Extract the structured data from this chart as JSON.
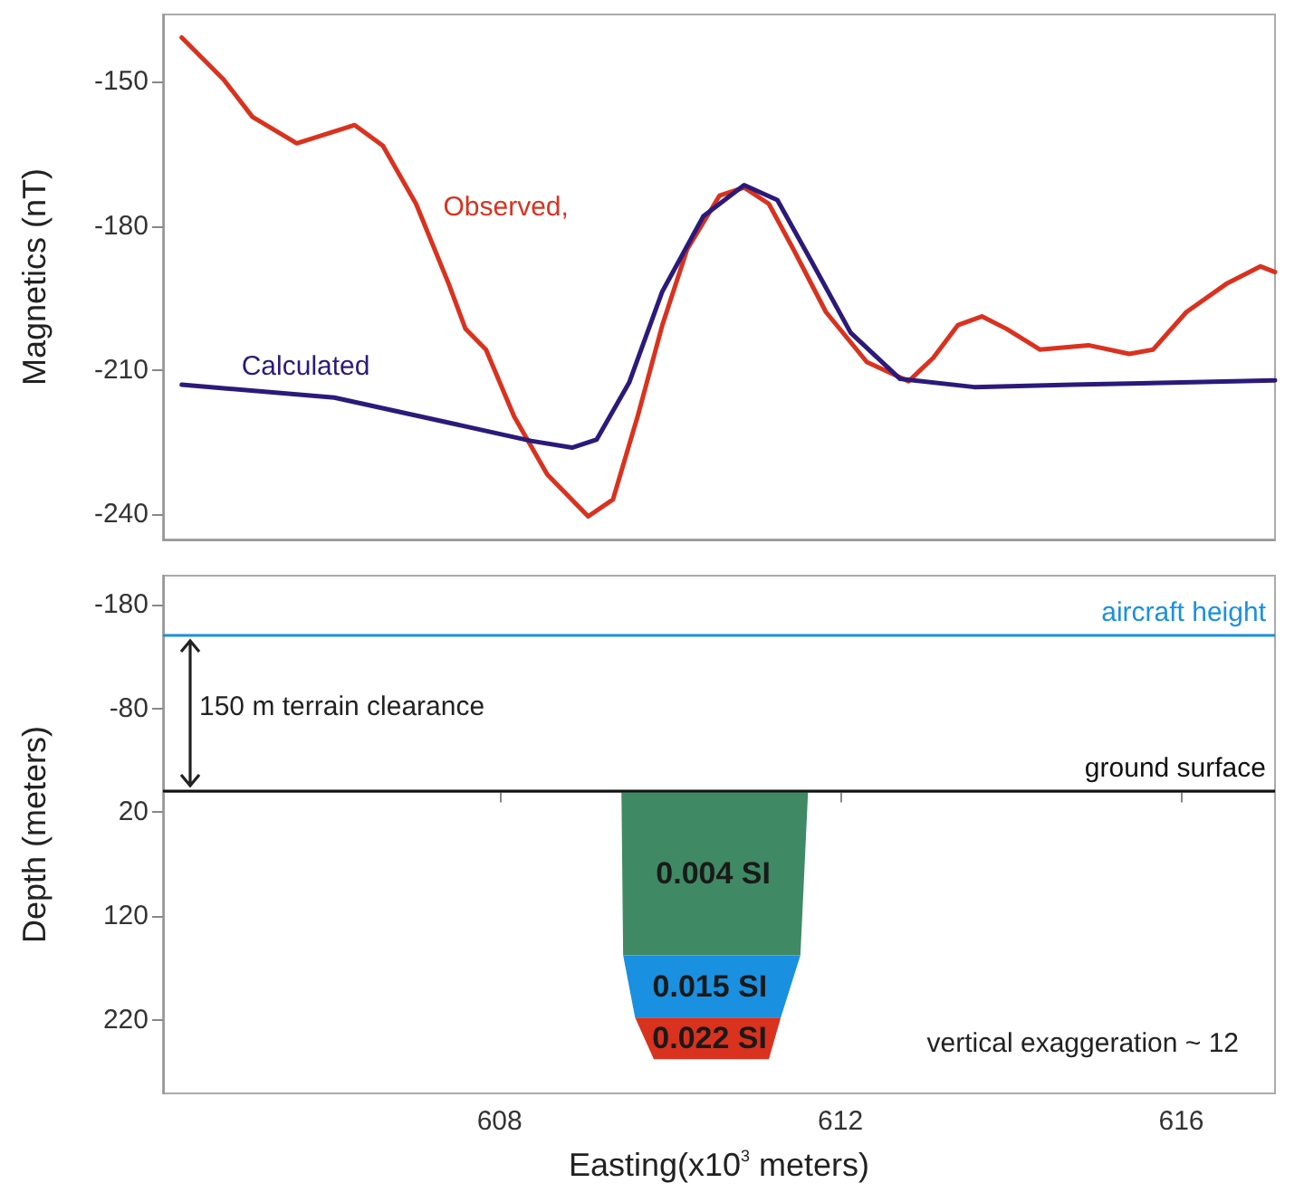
{
  "chart_data": [
    {
      "type": "line",
      "ylabel": "Magnetics (nT)",
      "xlim": [
        604.05,
        617.1
      ],
      "ylim": [
        -245.2,
        -136
      ],
      "yticks": [
        -240,
        -210,
        -180,
        -150
      ],
      "tick_labels": "y",
      "grid": false,
      "series": [
        {
          "name": "Observed,",
          "color": "#d9321f",
          "x": [
            604.27,
            604.76,
            605.1,
            605.62,
            606.3,
            606.63,
            607.02,
            607.4,
            607.6,
            607.84,
            608.17,
            608.56,
            609.04,
            609.33,
            609.62,
            609.91,
            610.2,
            610.58,
            610.87,
            611.16,
            611.45,
            611.83,
            612.31,
            612.8,
            613.09,
            613.38,
            613.66,
            613.95,
            614.34,
            614.91,
            615.39,
            615.67,
            616.06,
            616.54,
            616.93,
            617.1
          ],
          "values": [
            -140.8,
            -149.5,
            -157.3,
            -162.8,
            -159.0,
            -163.3,
            -175.4,
            -191.9,
            -201.4,
            -205.7,
            -219.6,
            -231.7,
            -240.4,
            -236.9,
            -219.6,
            -200.6,
            -184.9,
            -173.7,
            -172.0,
            -175.4,
            -184.9,
            -197.9,
            -208.3,
            -212.3,
            -207.4,
            -200.6,
            -198.8,
            -201.4,
            -205.7,
            -204.8,
            -206.6,
            -205.7,
            -197.9,
            -191.9,
            -188.4,
            -189.6
          ]
        },
        {
          "name": "Calculated",
          "color": "#2b1a7a",
          "x": [
            604.27,
            606.06,
            607.5,
            608.37,
            608.85,
            609.14,
            609.52,
            609.91,
            610.39,
            610.87,
            611.26,
            611.64,
            612.12,
            612.7,
            613.57,
            614.72,
            615.88,
            617.1
          ],
          "values": [
            -213.0,
            -215.7,
            -221.3,
            -224.7,
            -226.1,
            -224.4,
            -212.6,
            -193.6,
            -178.0,
            -171.5,
            -174.6,
            -186.7,
            -202.2,
            -211.8,
            -213.5,
            -213.0,
            -212.6,
            -212.1
          ]
        }
      ]
    },
    {
      "type": "area",
      "xlabel": "Easting(x10$^{3}$ meters)",
      "ylabel": "Depth (meters)",
      "xlim": [
        604.05,
        617.1
      ],
      "ylim": [
        291,
        -208
      ],
      "xticks": [
        608,
        612,
        616
      ],
      "yticks": [
        -180,
        -80,
        20,
        120,
        220
      ],
      "grid": false,
      "series": [
        {
          "name": "0.004 SI",
          "color": "#3f8a64",
          "x": [
            609.43,
            611.62,
            611.53,
            609.45
          ],
          "values": [
            0,
            0,
            158,
            158
          ]
        },
        {
          "name": "0.015 SI",
          "color": "#1a90e0",
          "x": [
            609.45,
            611.53,
            611.3,
            609.59
          ],
          "values": [
            158,
            158,
            218,
            218
          ]
        },
        {
          "name": "0.022 SI",
          "color": "#d9321f",
          "x": [
            609.59,
            611.3,
            611.16,
            609.81
          ],
          "values": [
            218,
            218,
            258,
            258
          ]
        }
      ],
      "ref_lines": [
        {
          "axis": "y",
          "value": -150,
          "label": "aircraft height",
          "color": "#1a90e0"
        },
        {
          "axis": "y",
          "value": 0,
          "label": "ground surface",
          "color": "#111111"
        }
      ],
      "annotations": [
        "150 m terrain clearance",
        "vertical exaggeration ~ 12"
      ]
    }
  ]
}
